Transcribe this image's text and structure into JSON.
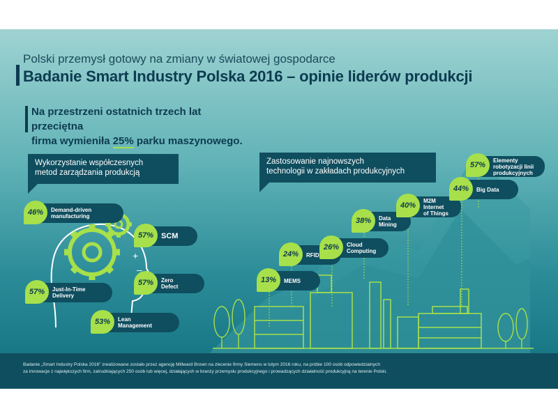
{
  "header": {
    "subtitle": "Polski przemysł gotowy na zmiany w światowej gospodarce",
    "title": "Badanie Smart Industry Polska 2016 – opinie liderów produkcji"
  },
  "stat": {
    "line1": "Na przestrzeni ostatnich trzech lat przeciętna",
    "line2_before": "firma wymieniła ",
    "line2_pct": "25%",
    "line2_after": " parku maszynowego."
  },
  "management": {
    "heading_line1": "Wykorzystanie współczesnych",
    "heading_line2": "metod zarządzania produkcją",
    "items": [
      {
        "pct": "46%",
        "line1": "Demand-driven",
        "line2": "manufacturing"
      },
      {
        "pct": "57%",
        "line1": "SCM",
        "line2": ""
      },
      {
        "pct": "57%",
        "line1": "Zero",
        "line2": "Defect"
      },
      {
        "pct": "57%",
        "line1": "Just-In-Time",
        "line2": "Delivery"
      },
      {
        "pct": "53%",
        "line1": "Lean",
        "line2": "Management"
      }
    ]
  },
  "technology": {
    "heading_line1": "Zastosowanie najnowszych",
    "heading_line2": "technologii w zakładach produkcyjnych",
    "items": [
      {
        "pct": "13%",
        "line1": "MEMS",
        "line2": "",
        "line3": ""
      },
      {
        "pct": "24%",
        "line1": "RFID",
        "line2": "",
        "line3": ""
      },
      {
        "pct": "26%",
        "line1": "Cloud",
        "line2": "Computing",
        "line3": ""
      },
      {
        "pct": "38%",
        "line1": "Data",
        "line2": "Mining",
        "line3": ""
      },
      {
        "pct": "40%",
        "line1": "M2M",
        "line2": "Internet",
        "line3": "of Things"
      },
      {
        "pct": "44%",
        "line1": "Big Data",
        "line2": "",
        "line3": ""
      },
      {
        "pct": "57%",
        "line1": "Elementy",
        "line2": "robotyzacji linii",
        "line3": "produkcyjnych"
      }
    ]
  },
  "footer": {
    "line1": "Badanie „Smart Industry Polska 2016” zrealizowane zostało przez agencję Millward Brown na zlecenie firmy Siemens w lutym 2016 roku, na próbie 100 osób odpowiedzialnych",
    "line2": "za innowacje z największych firm, zatrudniających 250 osób lub więcej, działających w branży przemysłu produkcyjnego i prowadzących działalność produkcyjną na terenie Polski."
  },
  "colors": {
    "accent": "#a7e04a",
    "dark": "#0f4e5f",
    "title": "#0d3b50"
  }
}
